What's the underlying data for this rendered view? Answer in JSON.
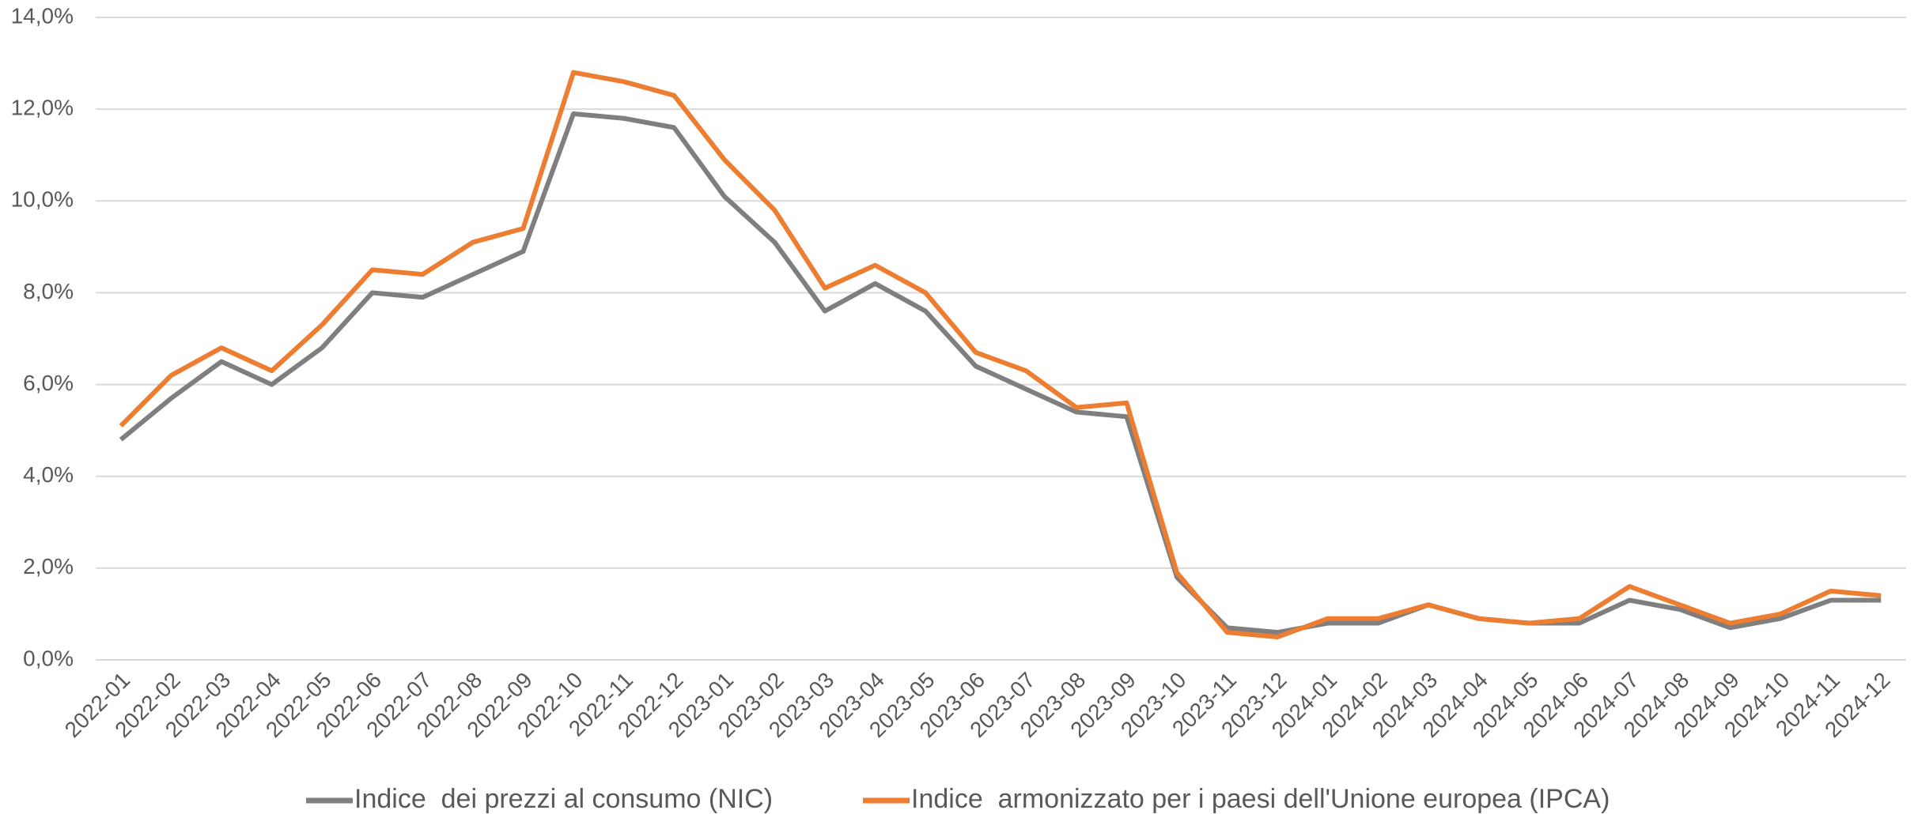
{
  "chart_data": {
    "type": "line",
    "categories": [
      "2022-01",
      "2022-02",
      "2022-03",
      "2022-04",
      "2022-05",
      "2022-06",
      "2022-07",
      "2022-08",
      "2022-09",
      "2022-10",
      "2022-11",
      "2022-12",
      "2023-01",
      "2023-02",
      "2023-03",
      "2023-04",
      "2023-05",
      "2023-06",
      "2023-07",
      "2023-08",
      "2023-09",
      "2023-10",
      "2023-11",
      "2023-12",
      "2024-01",
      "2024-02",
      "2024-03",
      "2024-04",
      "2024-05",
      "2024-06",
      "2024-07",
      "2024-08",
      "2024-09",
      "2024-10",
      "2024-11",
      "2024-12"
    ],
    "series": [
      {
        "name": "Indice  dei prezzi al consumo (NIC)",
        "color": "#7f7f7f",
        "values": [
          4.8,
          5.7,
          6.5,
          6.0,
          6.8,
          8.0,
          7.9,
          8.4,
          8.9,
          11.9,
          11.8,
          11.6,
          10.1,
          9.1,
          7.6,
          8.2,
          7.6,
          6.4,
          5.9,
          5.4,
          5.3,
          1.8,
          0.7,
          0.6,
          0.8,
          0.8,
          1.2,
          0.9,
          0.8,
          0.8,
          1.3,
          1.1,
          0.7,
          0.9,
          1.3,
          1.3
        ]
      },
      {
        "name": "Indice  armonizzato per i paesi dell'Unione europea (IPCA)",
        "color": "#ed7d31",
        "values": [
          5.1,
          6.2,
          6.8,
          6.3,
          7.3,
          8.5,
          8.4,
          9.1,
          9.4,
          12.8,
          12.6,
          12.3,
          10.9,
          9.8,
          8.1,
          8.6,
          8.0,
          6.7,
          6.3,
          5.5,
          5.6,
          1.9,
          0.6,
          0.5,
          0.9,
          0.9,
          1.2,
          0.9,
          0.8,
          0.9,
          1.6,
          1.2,
          0.8,
          1.0,
          1.5,
          1.4
        ]
      }
    ],
    "ylim": [
      0,
      14
    ],
    "yticks": [
      {
        "value": 0,
        "label": "0,0%"
      },
      {
        "value": 2,
        "label": "2,0%"
      },
      {
        "value": 4,
        "label": "4,0%"
      },
      {
        "value": 6,
        "label": "6,0%"
      },
      {
        "value": 8,
        "label": "8,0%"
      },
      {
        "value": 10,
        "label": "10,0%"
      },
      {
        "value": 12,
        "label": "12,0%"
      },
      {
        "value": 14,
        "label": "14,0%"
      }
    ],
    "grid": true,
    "legend": "bottom"
  }
}
